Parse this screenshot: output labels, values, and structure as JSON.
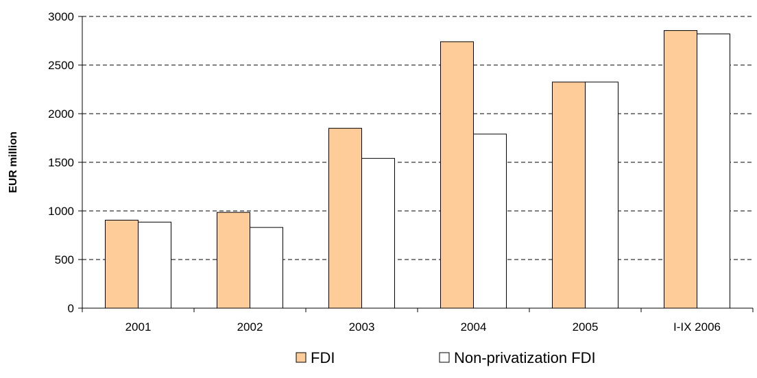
{
  "chart_data": {
    "type": "bar",
    "title": "",
    "xlabel": "",
    "ylabel": "EUR million",
    "ylim": [
      0,
      3000
    ],
    "yticks": [
      0,
      500,
      1000,
      1500,
      2000,
      2500,
      3000
    ],
    "grid": "horizontal dashed",
    "legend_position": "bottom",
    "categories": [
      "2001",
      "2002",
      "2003",
      "2004",
      "2005",
      "I-IX 2006"
    ],
    "series": [
      {
        "name": "FDI",
        "color": "#fdcc99",
        "values": [
          905,
          985,
          1850,
          2740,
          2325,
          2855
        ]
      },
      {
        "name": "Non-privatization FDI",
        "color": "#ffffff",
        "values": [
          885,
          830,
          1540,
          1790,
          2325,
          2820
        ]
      }
    ]
  }
}
